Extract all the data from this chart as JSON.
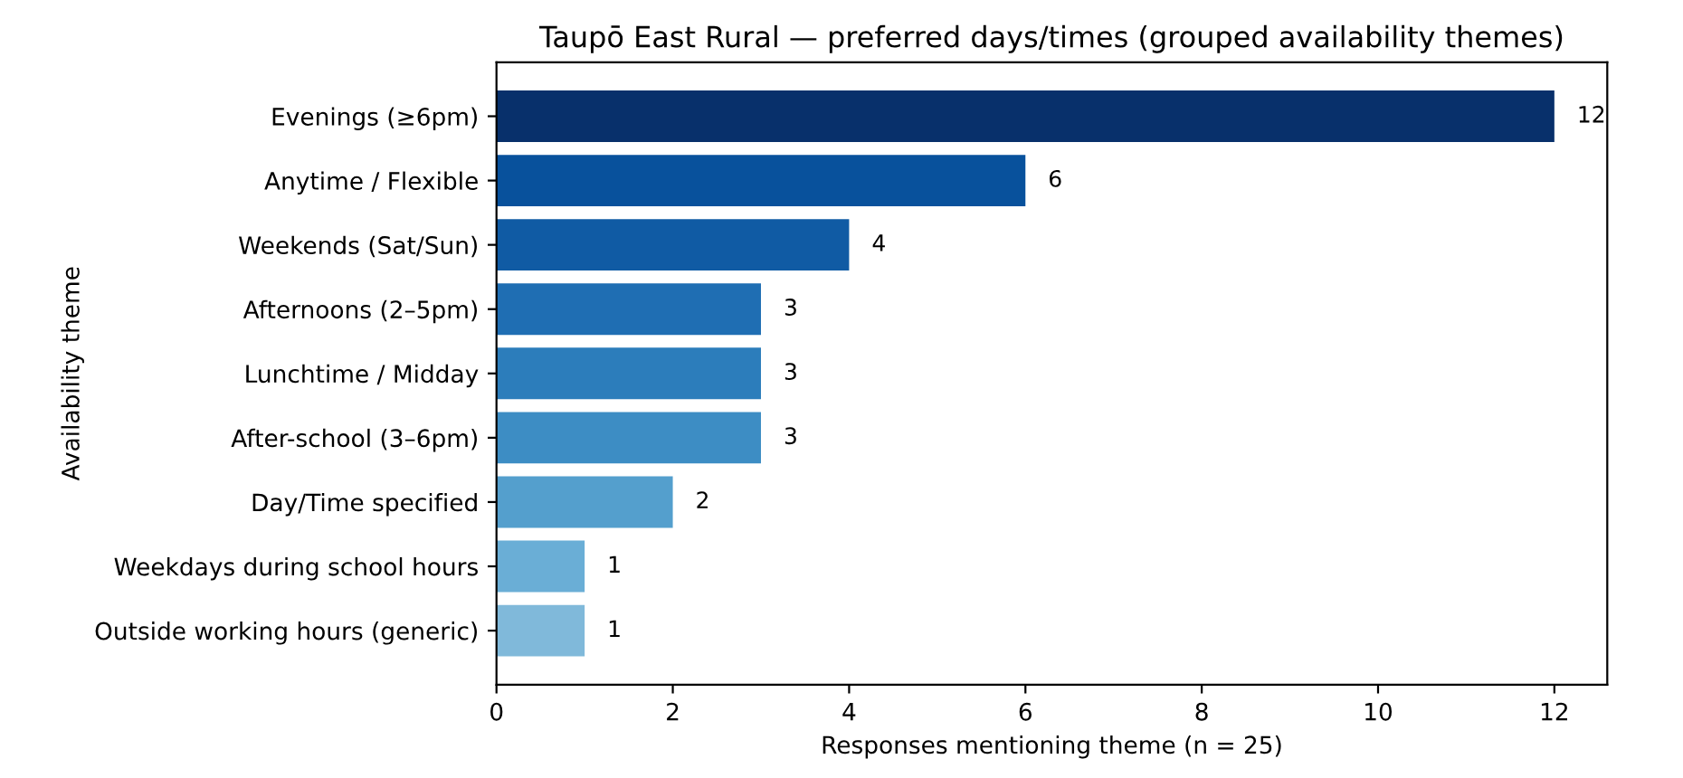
{
  "chart_data": {
    "type": "bar",
    "orientation": "horizontal",
    "title": "Taupō East Rural — preferred days/times (grouped availability themes)",
    "xlabel": "Responses mentioning theme (n = 25)",
    "ylabel": "Availability theme",
    "categories": [
      "Evenings (≥6pm)",
      "Anytime / Flexible",
      "Weekends (Sat/Sun)",
      "Afternoons (2–5pm)",
      "Lunchtime / Midday",
      "After-school (3–6pm)",
      "Day/Time specified",
      "Weekdays during school hours",
      "Outside working hours (generic)"
    ],
    "values": [
      12,
      6,
      4,
      3,
      3,
      3,
      2,
      1,
      1
    ],
    "colors": [
      "#08306b",
      "#08519c",
      "#105ba4",
      "#1f6eb3",
      "#2c7dbb",
      "#3d8dc4",
      "#549fcd",
      "#6aaed6",
      "#80b9da"
    ],
    "xlim": [
      0,
      12.6
    ],
    "xticks": [
      0,
      2,
      4,
      6,
      8,
      10,
      12
    ],
    "data_labels": true,
    "grid": false
  }
}
